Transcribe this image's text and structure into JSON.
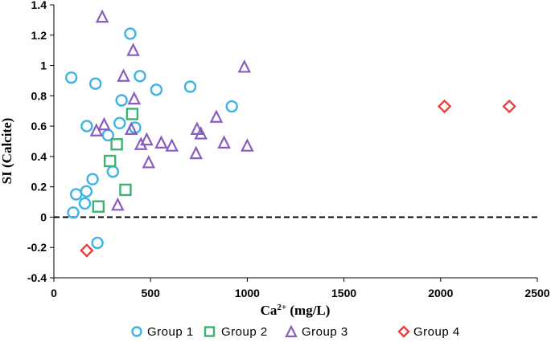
{
  "chart_data": {
    "type": "scatter",
    "xlabel": "Ca",
    "xlabel_superscript": "2+",
    "xlabel_units": " (mg/L)",
    "ylabel": "SI (Calcite)",
    "xlim": [
      0,
      2500
    ],
    "ylim": [
      -0.4,
      1.4
    ],
    "x_ticks": [
      0,
      500,
      1000,
      1500,
      2000,
      2500
    ],
    "y_ticks": [
      -0.4,
      -0.2,
      0,
      0.2,
      0.4,
      0.6,
      0.8,
      1,
      1.2,
      1.4
    ],
    "x_tick_labels": [
      "0",
      "500",
      "1000",
      "1500",
      "2000",
      "2500"
    ],
    "y_tick_labels": [
      "-0.4",
      "-0.2",
      "0",
      "0.2",
      "0.4",
      "0.6",
      "0.8",
      "1",
      "1.2",
      "1.4"
    ],
    "reference_line": {
      "y": 0,
      "style": "dashed"
    },
    "legend_position": "bottom",
    "series": [
      {
        "name": "Group 1",
        "marker": "circle",
        "color": "#3CB4E6",
        "points": [
          [
            100,
            0.03
          ],
          [
            115,
            0.15
          ],
          [
            160,
            0.09
          ],
          [
            168,
            0.17
          ],
          [
            90,
            0.92
          ],
          [
            170,
            0.6
          ],
          [
            200,
            0.25
          ],
          [
            215,
            0.88
          ],
          [
            225,
            -0.17
          ],
          [
            280,
            0.54
          ],
          [
            305,
            0.3
          ],
          [
            340,
            0.62
          ],
          [
            350,
            0.77
          ],
          [
            395,
            1.21
          ],
          [
            420,
            0.59
          ],
          [
            445,
            0.93
          ],
          [
            530,
            0.84
          ],
          [
            705,
            0.86
          ],
          [
            920,
            0.73
          ]
        ]
      },
      {
        "name": "Group 2",
        "marker": "square",
        "color": "#3CB46E",
        "points": [
          [
            230,
            0.07
          ],
          [
            290,
            0.37
          ],
          [
            325,
            0.48
          ],
          [
            370,
            0.18
          ],
          [
            405,
            0.68
          ]
        ]
      },
      {
        "name": "Group 3",
        "marker": "triangle",
        "color": "#8B5CC0",
        "points": [
          [
            250,
            1.32
          ],
          [
            220,
            0.57
          ],
          [
            260,
            0.61
          ],
          [
            330,
            0.08
          ],
          [
            360,
            0.93
          ],
          [
            400,
            0.58
          ],
          [
            410,
            1.1
          ],
          [
            415,
            0.78
          ],
          [
            450,
            0.48
          ],
          [
            480,
            0.51
          ],
          [
            490,
            0.36
          ],
          [
            555,
            0.49
          ],
          [
            610,
            0.47
          ],
          [
            735,
            0.42
          ],
          [
            740,
            0.58
          ],
          [
            760,
            0.55
          ],
          [
            840,
            0.66
          ],
          [
            880,
            0.49
          ],
          [
            985,
            0.99
          ],
          [
            1000,
            0.47
          ]
        ]
      },
      {
        "name": "Group 4",
        "marker": "diamond",
        "color": "#E84040",
        "points": [
          [
            170,
            -0.22
          ],
          [
            2020,
            0.73
          ],
          [
            2355,
            0.73
          ]
        ]
      }
    ]
  }
}
